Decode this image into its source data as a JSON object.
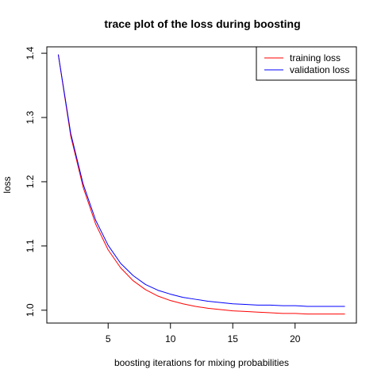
{
  "chart_data": {
    "type": "line",
    "title": "trace plot of the loss during boosting",
    "xlabel": "boosting iterations for mixing probabilities",
    "ylabel": "loss",
    "xlim": [
      0.08,
      24.92
    ],
    "ylim": [
      0.98,
      1.41
    ],
    "xticks": [
      5,
      10,
      15,
      20
    ],
    "yticks": [
      1.0,
      1.1,
      1.2,
      1.3,
      1.4
    ],
    "xtick_labels": [
      "5",
      "10",
      "15",
      "20"
    ],
    "ytick_labels": [
      "1.0",
      "1.1",
      "1.2",
      "1.3",
      "1.4"
    ],
    "x": [
      1,
      2,
      3,
      4,
      5,
      6,
      7,
      8,
      9,
      10,
      11,
      12,
      13,
      14,
      15,
      16,
      17,
      18,
      19,
      20,
      21,
      22,
      23,
      24
    ],
    "series": [
      {
        "name": "training loss",
        "color": "#ff0000",
        "values": [
          1.398,
          1.271,
          1.191,
          1.134,
          1.094,
          1.066,
          1.046,
          1.032,
          1.022,
          1.015,
          1.01,
          1.006,
          1.003,
          1.001,
          0.999,
          0.998,
          0.997,
          0.996,
          0.995,
          0.995,
          0.994,
          0.994,
          0.994,
          0.994
        ]
      },
      {
        "name": "validation loss",
        "color": "#0000ff",
        "values": [
          1.398,
          1.275,
          1.196,
          1.14,
          1.101,
          1.073,
          1.054,
          1.04,
          1.031,
          1.025,
          1.02,
          1.017,
          1.014,
          1.012,
          1.01,
          1.009,
          1.008,
          1.008,
          1.007,
          1.007,
          1.006,
          1.006,
          1.006,
          1.006
        ]
      }
    ],
    "legend_position": "top-right",
    "grid": false,
    "box": true
  }
}
